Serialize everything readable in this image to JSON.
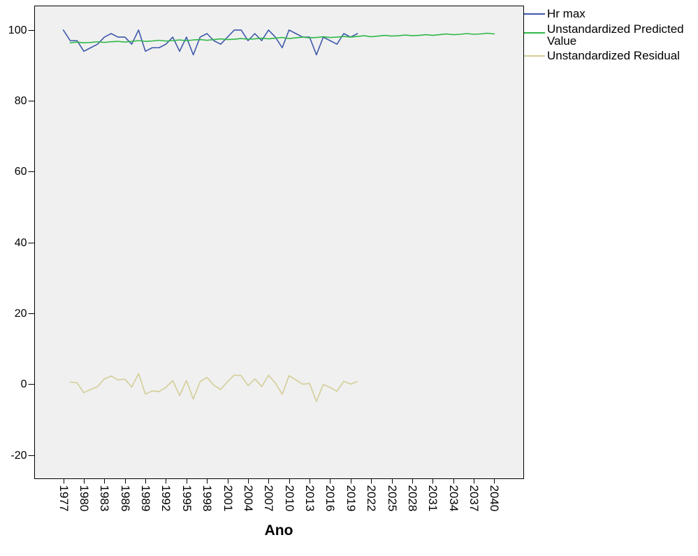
{
  "chart_data": {
    "type": "line",
    "xlabel": "Ano",
    "xlim": [
      1972.8,
      2044.3
    ],
    "ylim": [
      -26.7,
      106.8
    ],
    "x_ticks": [
      1977,
      1980,
      1983,
      1986,
      1989,
      1992,
      1995,
      1998,
      2001,
      2004,
      2007,
      2010,
      2013,
      2016,
      2019,
      2022,
      2025,
      2028,
      2031,
      2034,
      2037,
      2040
    ],
    "y_ticks": [
      100,
      80,
      60,
      40,
      20,
      0,
      -20
    ],
    "grid": false,
    "legend": "right",
    "plot_background": "#f0f0f0",
    "x": [
      1977,
      1978,
      1979,
      1980,
      1981,
      1982,
      1983,
      1984,
      1985,
      1986,
      1987,
      1988,
      1989,
      1990,
      1991,
      1992,
      1993,
      1994,
      1995,
      1996,
      1997,
      1998,
      1999,
      2000,
      2001,
      2002,
      2003,
      2004,
      2005,
      2006,
      2007,
      2008,
      2009,
      2010,
      2011,
      2012,
      2013,
      2014,
      2015,
      2016,
      2017,
      2018,
      2019,
      2020,
      2021,
      2022,
      2023,
      2024,
      2025,
      2026,
      2027,
      2028,
      2029,
      2030,
      2031,
      2032,
      2033,
      2034,
      2035,
      2036,
      2037,
      2038,
      2039,
      2040
    ],
    "series": [
      {
        "name": "Hr max",
        "color": "#3e58ac",
        "values": [
          100,
          97,
          97,
          94,
          95,
          96,
          98,
          99,
          98,
          98,
          96,
          100,
          94,
          95,
          95,
          96,
          98,
          94,
          98,
          93,
          98,
          99,
          97,
          96,
          98,
          100,
          100,
          97,
          99,
          97,
          100,
          98,
          95,
          100,
          99,
          98,
          98,
          93,
          98,
          97,
          96,
          99,
          98,
          99,
          null,
          null,
          null,
          null,
          null,
          null,
          null,
          null,
          null,
          null,
          null,
          null,
          null,
          null,
          null,
          null,
          null,
          null,
          null,
          null
        ]
      },
      {
        "name": "Unstandardized Predicted Value",
        "color": "#2eb848",
        "values": [
          null,
          96.4,
          96.6,
          96.4,
          96.5,
          96.7,
          96.5,
          96.7,
          96.8,
          96.6,
          96.8,
          97.0,
          96.8,
          96.9,
          97.1,
          96.9,
          97.0,
          97.2,
          97.0,
          97.2,
          97.3,
          97.1,
          97.3,
          97.5,
          97.3,
          97.4,
          97.6,
          97.4,
          97.5,
          97.7,
          97.5,
          97.7,
          97.9,
          97.6,
          97.8,
          98.0,
          97.8,
          97.9,
          98.1,
          97.9,
          98.0,
          98.2,
          98.0,
          98.2,
          98.4,
          98.1,
          98.3,
          98.5,
          98.3,
          98.4,
          98.6,
          98.4,
          98.5,
          98.7,
          98.5,
          98.7,
          98.9,
          98.7,
          98.8,
          99.0,
          98.8,
          98.9,
          99.1,
          98.9
        ]
      },
      {
        "name": "Unstandardized Residual",
        "color": "#d3ce97",
        "values": [
          null,
          0.6,
          0.4,
          -2.4,
          -1.5,
          -0.7,
          1.5,
          2.3,
          1.2,
          1.4,
          -0.8,
          3.0,
          -2.8,
          -1.9,
          -2.1,
          -0.9,
          1.0,
          -3.2,
          1.0,
          -4.2,
          0.7,
          1.9,
          -0.3,
          -1.5,
          0.7,
          2.6,
          2.4,
          -0.4,
          1.5,
          -0.7,
          2.5,
          0.3,
          -2.9,
          2.4,
          1.2,
          0.0,
          0.2,
          -4.9,
          -0.1,
          -0.9,
          -2.0,
          0.8,
          0.0,
          0.8,
          null,
          null,
          null,
          null,
          null,
          null,
          null,
          null,
          null,
          null,
          null,
          null,
          null,
          null,
          null,
          null,
          null,
          null,
          null,
          null
        ]
      }
    ]
  }
}
